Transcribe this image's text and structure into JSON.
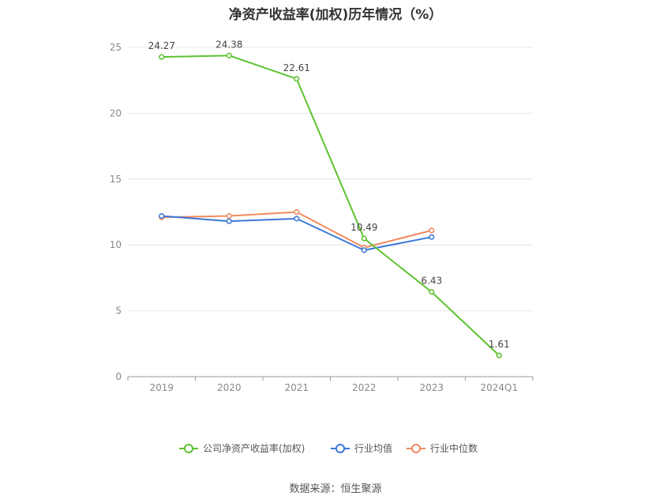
{
  "chart_data": {
    "type": "line",
    "title": "净资产收益率(加权)历年情况（%）",
    "categories": [
      "2019",
      "2020",
      "2021",
      "2022",
      "2023",
      "2024Q1"
    ],
    "ylim": [
      0,
      25
    ],
    "yticks": [
      0,
      5,
      10,
      15,
      20,
      25
    ],
    "grid": true,
    "legend_position": "bottom",
    "series": [
      {
        "name": "公司净资产收益率(加权)",
        "color": "#5dc22f",
        "values": [
          24.27,
          24.38,
          22.61,
          10.49,
          6.43,
          1.61
        ],
        "data_labels": [
          "24.27",
          "24.38",
          "22.61",
          "10.49",
          "6.43",
          "1.61"
        ]
      },
      {
        "name": "行业均值",
        "color": "#3c78d8",
        "values": [
          12.2,
          11.8,
          12.0,
          9.6,
          10.6,
          null
        ]
      },
      {
        "name": "行业中位数",
        "color": "#f08a5d",
        "values": [
          12.1,
          12.2,
          12.5,
          9.8,
          11.1,
          null
        ]
      }
    ]
  },
  "source_note": "数据来源：恒生聚源"
}
